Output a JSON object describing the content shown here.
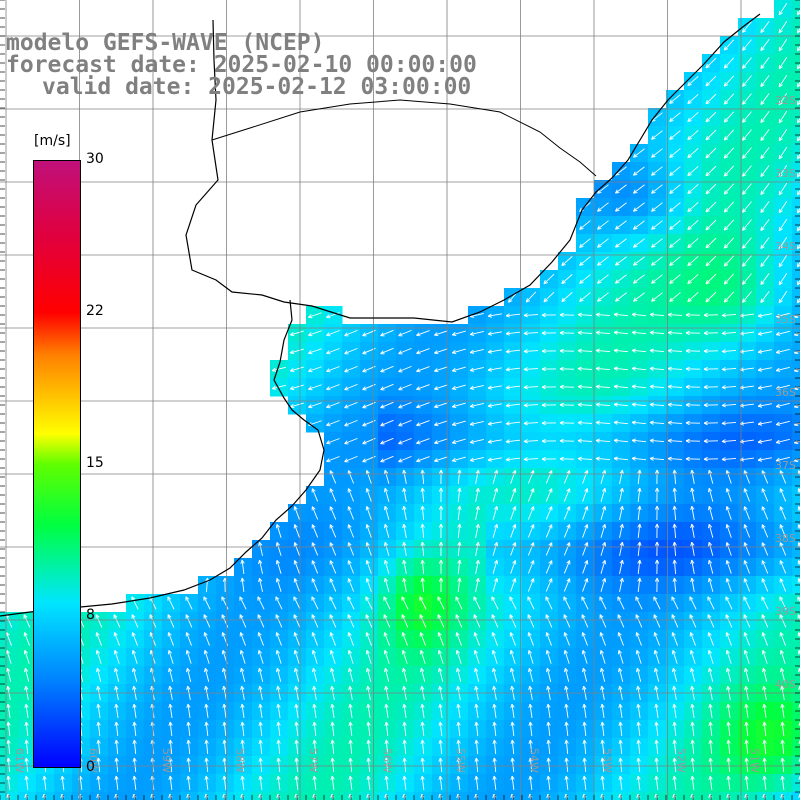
{
  "header": {
    "line1": "modelo GEFS-WAVE (NCEP)",
    "line2": "forecast date: 2025-02-10 00:00:00",
    "line3": "valid date: 2025-02-12 03:00:00"
  },
  "colorbar": {
    "units": "[m/s]",
    "ticks": [
      "30",
      "22",
      "15",
      "8",
      "0"
    ],
    "range": [
      0,
      30
    ],
    "colors": [
      "#0000ff",
      "#0080ff",
      "#00e5ff",
      "#00ff40",
      "#60ff00",
      "#ffff00",
      "#ff8000",
      "#ff0000",
      "#e00040",
      "#c0107a"
    ]
  },
  "lat_labels": [
    "32S",
    "33S",
    "34S",
    "35S",
    "36S",
    "37S",
    "38S",
    "39S",
    "40S"
  ],
  "lon_labels": [
    "61W",
    "60W",
    "59W",
    "58W",
    "57W",
    "56W",
    "55W",
    "54W",
    "53W",
    "52W",
    "51W"
  ],
  "colors": {
    "land": "#ffffff",
    "coast": "#000000",
    "grid": "#808080",
    "arrows": "#ffffff"
  }
}
